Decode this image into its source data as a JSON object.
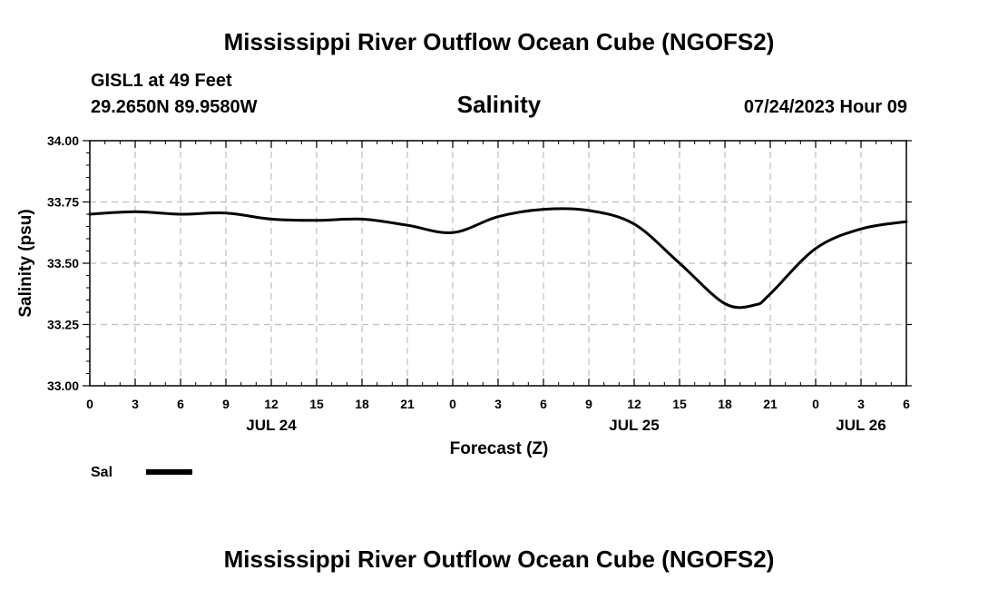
{
  "header": {
    "title": "Mississippi River Outflow Ocean Cube (NGOFS2)",
    "station": "GISL1 at 49 Feet",
    "coords": "29.2650N  89.9580W",
    "datetime": "07/24/2023 Hour 09"
  },
  "footer": {
    "title": "Mississippi River Outflow Ocean Cube (NGOFS2)"
  },
  "legend": {
    "label": "Sal",
    "color": "#000000"
  },
  "chart_data": {
    "type": "line",
    "title": "Salinity",
    "xlabel": "Forecast (Z)",
    "ylabel": "Salinity (psu)",
    "xlim": [
      0,
      54
    ],
    "ylim": [
      33.0,
      34.0
    ],
    "grid": true,
    "x_ticks": [
      0,
      3,
      6,
      9,
      12,
      15,
      18,
      21,
      24,
      27,
      30,
      33,
      36,
      39,
      42,
      45,
      48,
      51,
      54
    ],
    "x_tick_labels": [
      "0",
      "3",
      "6",
      "9",
      "12",
      "15",
      "18",
      "21",
      "0",
      "3",
      "6",
      "9",
      "12",
      "15",
      "18",
      "21",
      "0",
      "3",
      "6"
    ],
    "y_ticks": [
      33.0,
      33.25,
      33.5,
      33.75,
      34.0
    ],
    "y_tick_labels": [
      "33.00",
      "33.25",
      "33.50",
      "33.75",
      "34.00"
    ],
    "day_labels": [
      {
        "x": 12,
        "label": "JUL 24"
      },
      {
        "x": 36,
        "label": "JUL 25"
      },
      {
        "x": 51,
        "label": "JUL 26"
      }
    ],
    "series": [
      {
        "name": "Sal",
        "x": [
          0,
          3,
          6,
          9,
          12,
          15,
          18,
          21,
          24,
          27,
          30,
          33,
          36,
          39,
          42,
          44,
          45,
          48,
          51,
          54
        ],
        "values": [
          33.7,
          33.71,
          33.7,
          33.705,
          33.68,
          33.675,
          33.68,
          33.655,
          33.625,
          33.69,
          33.72,
          33.715,
          33.66,
          33.5,
          33.335,
          33.33,
          33.375,
          33.56,
          33.64,
          33.67
        ]
      }
    ]
  }
}
